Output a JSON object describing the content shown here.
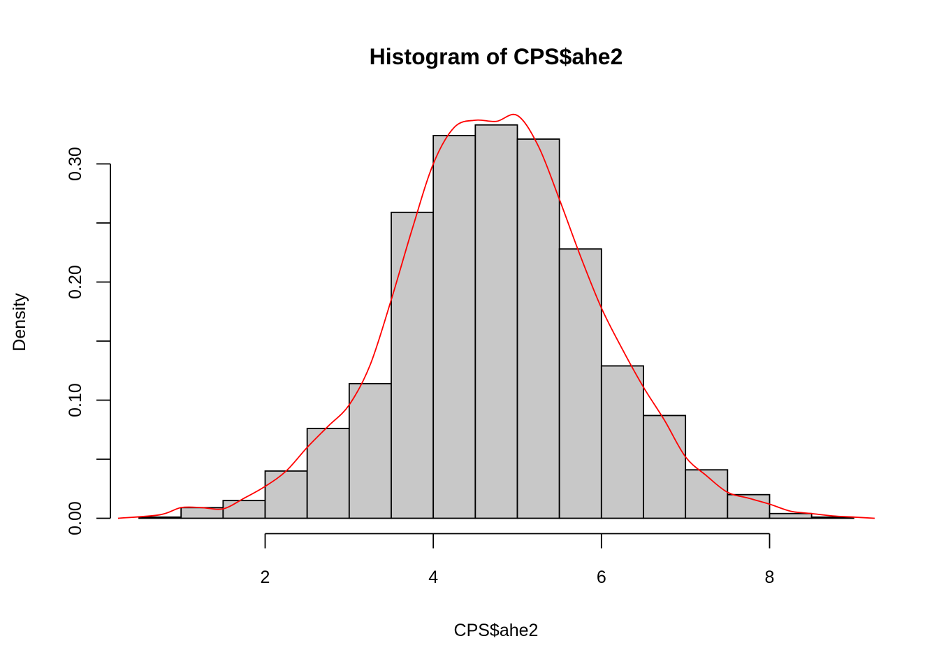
{
  "chart_data": {
    "type": "histogram",
    "title": "Histogram of CPS$ahe2",
    "xlabel": "CPS$ahe2",
    "ylabel": "Density",
    "x_ticks": [
      2,
      4,
      6,
      8
    ],
    "x_tick_labels": [
      "2",
      "4",
      "6",
      "8"
    ],
    "y_ticks": [
      0.0,
      0.05,
      0.1,
      0.15,
      0.2,
      0.25,
      0.3
    ],
    "y_tick_labels": [
      "0.00",
      "",
      "0.10",
      "",
      "0.20",
      "",
      "0.30"
    ],
    "bins": [
      {
        "start": 0.5,
        "end": 1.0,
        "density": 0.001
      },
      {
        "start": 1.0,
        "end": 1.5,
        "density": 0.009
      },
      {
        "start": 1.5,
        "end": 2.0,
        "density": 0.015
      },
      {
        "start": 2.0,
        "end": 2.5,
        "density": 0.04
      },
      {
        "start": 2.5,
        "end": 3.0,
        "density": 0.076
      },
      {
        "start": 3.0,
        "end": 3.5,
        "density": 0.114
      },
      {
        "start": 3.5,
        "end": 4.0,
        "density": 0.259
      },
      {
        "start": 4.0,
        "end": 4.5,
        "density": 0.324
      },
      {
        "start": 4.5,
        "end": 5.0,
        "density": 0.333
      },
      {
        "start": 5.0,
        "end": 5.5,
        "density": 0.321
      },
      {
        "start": 5.5,
        "end": 6.0,
        "density": 0.228
      },
      {
        "start": 6.0,
        "end": 6.5,
        "density": 0.129
      },
      {
        "start": 6.5,
        "end": 7.0,
        "density": 0.087
      },
      {
        "start": 7.0,
        "end": 7.5,
        "density": 0.041
      },
      {
        "start": 7.5,
        "end": 8.0,
        "density": 0.02
      },
      {
        "start": 8.0,
        "end": 8.5,
        "density": 0.004
      },
      {
        "start": 8.5,
        "end": 9.0,
        "density": 0.001
      }
    ],
    "density_curve": {
      "x": [
        0.25,
        0.75,
        1.0,
        1.25,
        1.5,
        1.75,
        2.0,
        2.25,
        2.5,
        2.75,
        3.0,
        3.25,
        3.5,
        3.75,
        4.0,
        4.25,
        4.5,
        4.75,
        5.0,
        5.25,
        5.5,
        5.75,
        6.0,
        6.25,
        6.5,
        6.75,
        7.0,
        7.25,
        7.5,
        7.75,
        8.0,
        8.25,
        8.5,
        8.75,
        9.0,
        9.25
      ],
      "y": [
        0.0,
        0.003,
        0.009,
        0.009,
        0.008,
        0.017,
        0.027,
        0.04,
        0.06,
        0.078,
        0.096,
        0.13,
        0.185,
        0.245,
        0.3,
        0.331,
        0.337,
        0.336,
        0.341,
        0.315,
        0.27,
        0.222,
        0.178,
        0.143,
        0.111,
        0.083,
        0.052,
        0.036,
        0.022,
        0.017,
        0.012,
        0.006,
        0.004,
        0.002,
        0.001,
        0.0
      ]
    },
    "ylim": [
      0,
      0.345
    ],
    "xlim": [
      0.25,
      9.25
    ],
    "bar_fill": "#c8c8c8",
    "bar_stroke": "#000000",
    "curve_color": "#ff0000",
    "grid": false,
    "legend": "none"
  }
}
